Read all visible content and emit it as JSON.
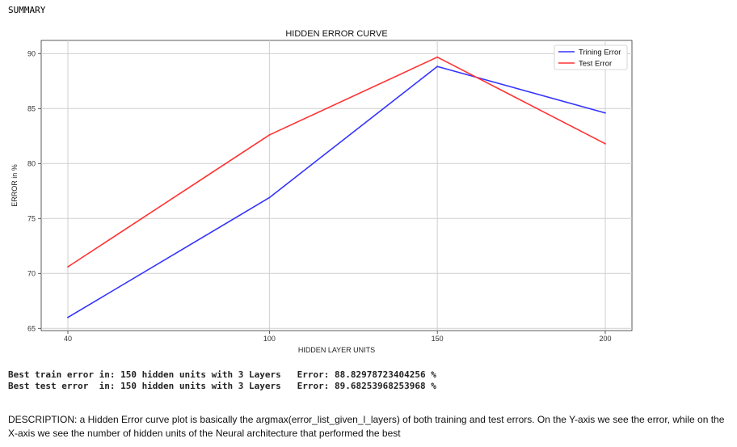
{
  "summary_label": "SUMMARY",
  "chart_data": {
    "type": "line",
    "title": "HIDDEN ERROR CURVE",
    "xlabel": "HIDDEN LAYER UNITS",
    "ylabel": "ERROR in %",
    "x": [
      40,
      100,
      150,
      200
    ],
    "x_tick_labels": [
      "40",
      "100",
      "150",
      "200"
    ],
    "y_ticks": [
      65,
      70,
      75,
      80,
      85,
      90
    ],
    "y_tick_labels": [
      "65",
      "70",
      "75",
      "80",
      "85",
      "90"
    ],
    "ylim": [
      64.8,
      91.2
    ],
    "grid": true,
    "legend_position": "top-right",
    "series": [
      {
        "name": "Trining Error",
        "color": "#3333ff",
        "values": [
          66.0,
          76.9,
          88.83,
          84.6
        ]
      },
      {
        "name": "Test Error",
        "color": "#ff3333",
        "values": [
          70.6,
          82.6,
          89.68,
          81.8
        ]
      }
    ]
  },
  "results": {
    "train": {
      "label": "Best train error in: 150 hidden units with 3 Layers",
      "error": "Error: 88.82978723404256 %"
    },
    "test": {
      "label": "Best test error  in: 150 hidden units with 3 Layers",
      "error": "Error: 89.68253968253968 %"
    }
  },
  "description": "DESCRIPTION: a Hidden Error curve plot is basically the argmax(error_list_given_l_layers) of both training and test errors. On the Y-axis we see the error, while on the X-axis we see the number of hidden units of the Neural architecture that performed the best"
}
